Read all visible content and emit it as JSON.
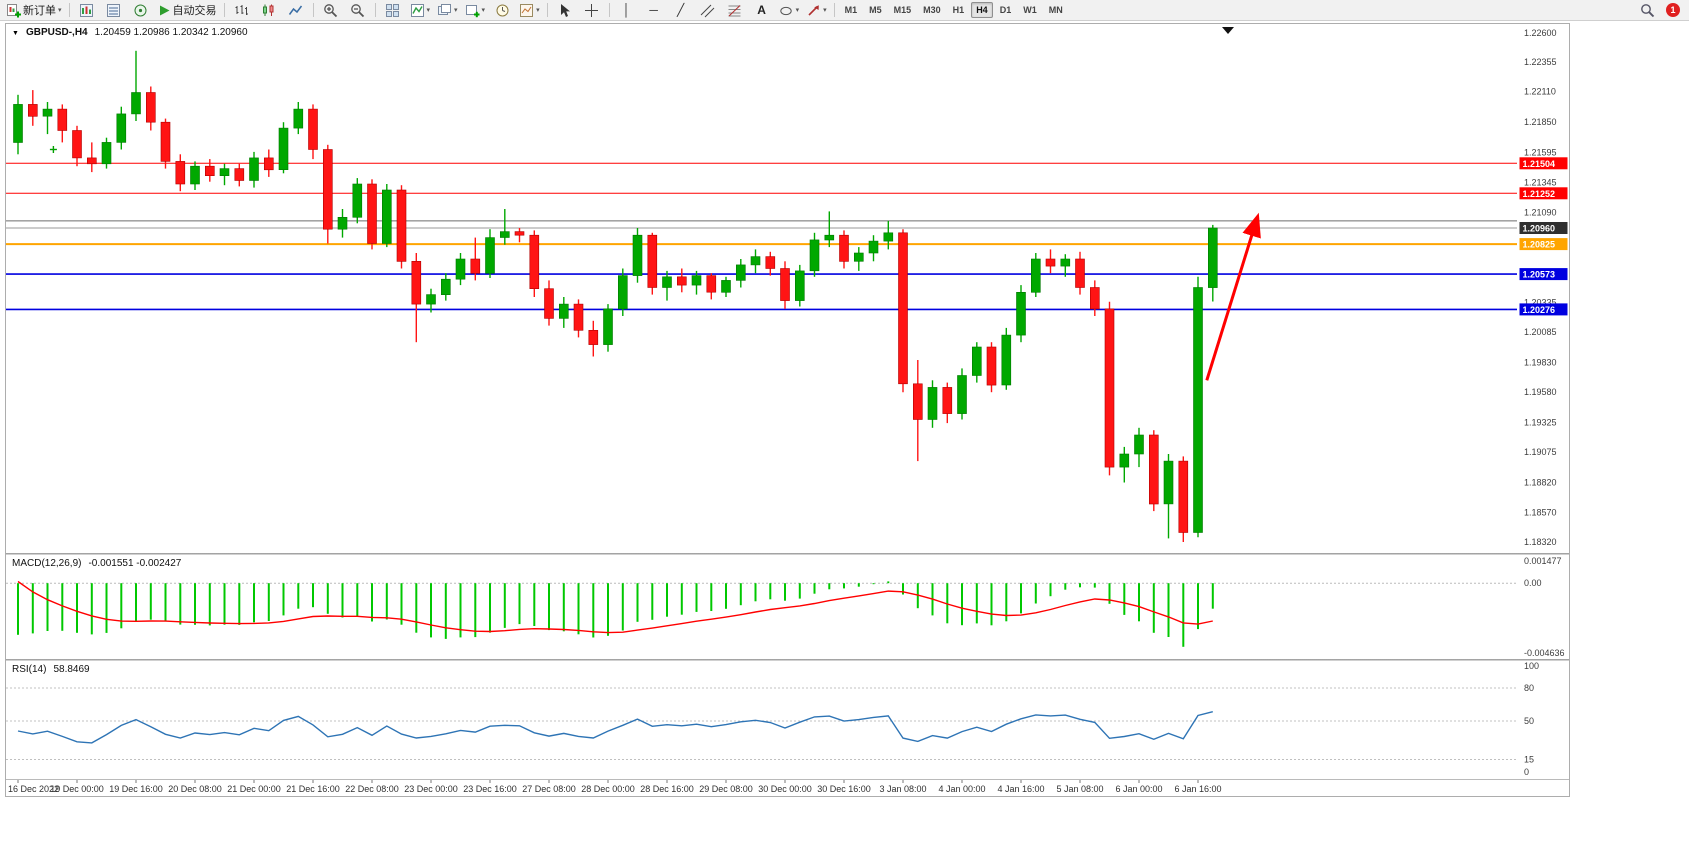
{
  "toolbar": {
    "new_order_label": "新订单",
    "auto_trading_label": "自动交易",
    "text_tool_label": "A",
    "timeframes": [
      "M1",
      "M5",
      "M15",
      "M30",
      "H1",
      "H4",
      "D1",
      "W1",
      "MN"
    ],
    "active_timeframe": "H4",
    "notification_count": "1",
    "caret": "▾"
  },
  "chart": {
    "collapse_icon": "▼",
    "symbol_label": "GBPUSD-,H4",
    "ohlc": "1.20459 1.20986 1.20342 1.20960",
    "macd_label": "MACD(12,26,9)",
    "macd_values": "-0.001551 -0.002427",
    "rsi_label": "RSI(14)",
    "rsi_value": "58.8469"
  },
  "chart_data": {
    "type": "candlestick",
    "symbol": "GBPUSD",
    "timeframe": "H4",
    "current_ohlc": {
      "open": 1.20459,
      "high": 1.20986,
      "low": 1.20342,
      "close": 1.2096
    },
    "price_axis": {
      "min": 1.1832,
      "max": 1.226,
      "labels": [
        "1.22600",
        "1.22355",
        "1.22110",
        "1.21850",
        "1.21595",
        "1.21345",
        "1.21090",
        "1.20335",
        "1.20085",
        "1.19830",
        "1.19580",
        "1.19325",
        "1.19075",
        "1.18820",
        "1.18570",
        "1.18320"
      ]
    },
    "candles": [
      [
        1.2168,
        1.2208,
        1.2158,
        1.22
      ],
      [
        1.22,
        1.2212,
        1.2182,
        1.219
      ],
      [
        1.219,
        1.2202,
        1.2175,
        1.2196
      ],
      [
        1.2196,
        1.22,
        1.2168,
        1.2178
      ],
      [
        1.2178,
        1.2182,
        1.2148,
        1.2155
      ],
      [
        1.2155,
        1.2168,
        1.2143,
        1.215
      ],
      [
        1.215,
        1.2172,
        1.2146,
        1.2168
      ],
      [
        1.2168,
        1.2198,
        1.2162,
        1.2192
      ],
      [
        1.2192,
        1.2245,
        1.2186,
        1.221
      ],
      [
        1.221,
        1.2215,
        1.2178,
        1.2185
      ],
      [
        1.2185,
        1.2188,
        1.2146,
        1.2152
      ],
      [
        1.2152,
        1.2158,
        1.2127,
        1.2133
      ],
      [
        1.2133,
        1.2152,
        1.2128,
        1.2148
      ],
      [
        1.2148,
        1.2154,
        1.2135,
        1.214
      ],
      [
        1.214,
        1.215,
        1.2132,
        1.2146
      ],
      [
        1.2146,
        1.215,
        1.2131,
        1.2136
      ],
      [
        1.2136,
        1.216,
        1.213,
        1.2155
      ],
      [
        1.2155,
        1.2162,
        1.2139,
        1.2145
      ],
      [
        1.2145,
        1.2185,
        1.2142,
        1.218
      ],
      [
        1.218,
        1.2202,
        1.2175,
        1.2196
      ],
      [
        1.2196,
        1.22,
        1.2154,
        1.2162
      ],
      [
        1.2162,
        1.2166,
        1.2083,
        1.2095
      ],
      [
        1.2095,
        1.2112,
        1.2088,
        1.2105
      ],
      [
        1.2105,
        1.2138,
        1.21,
        1.2133
      ],
      [
        1.2133,
        1.2137,
        1.2078,
        1.2083
      ],
      [
        1.2083,
        1.2133,
        1.208,
        1.2128
      ],
      [
        1.2128,
        1.2132,
        1.2062,
        1.2068
      ],
      [
        1.2068,
        1.2075,
        1.2,
        1.2032
      ],
      [
        1.2032,
        1.2045,
        1.2025,
        1.204
      ],
      [
        1.204,
        1.2058,
        1.2035,
        1.2053
      ],
      [
        1.2053,
        1.2075,
        1.2048,
        1.207
      ],
      [
        1.207,
        1.2088,
        1.2052,
        1.2058
      ],
      [
        1.2058,
        1.2095,
        1.2054,
        1.2088
      ],
      [
        1.2088,
        1.2112,
        1.2082,
        1.2093
      ],
      [
        1.2093,
        1.2096,
        1.2084,
        1.209
      ],
      [
        1.209,
        1.2094,
        1.2038,
        1.2045
      ],
      [
        1.2045,
        1.2052,
        1.2014,
        1.202
      ],
      [
        1.202,
        1.2038,
        1.2012,
        1.2032
      ],
      [
        1.2032,
        1.2036,
        1.2004,
        1.201
      ],
      [
        1.201,
        1.2018,
        1.1988,
        1.1998
      ],
      [
        1.1998,
        1.2032,
        1.1992,
        1.2028
      ],
      [
        1.2028,
        1.2062,
        1.2022,
        1.2056
      ],
      [
        1.2056,
        1.2096,
        1.205,
        1.209
      ],
      [
        1.209,
        1.2092,
        1.204,
        1.2046
      ],
      [
        1.2046,
        1.206,
        1.2035,
        1.2055
      ],
      [
        1.2055,
        1.2062,
        1.2042,
        1.2048
      ],
      [
        1.2048,
        1.206,
        1.204,
        1.2056
      ],
      [
        1.2056,
        1.2058,
        1.2036,
        1.2042
      ],
      [
        1.2042,
        1.2055,
        1.2038,
        1.2052
      ],
      [
        1.2052,
        1.207,
        1.2046,
        1.2065
      ],
      [
        1.2065,
        1.2078,
        1.2058,
        1.2072
      ],
      [
        1.2072,
        1.2076,
        1.2056,
        1.2062
      ],
      [
        1.2062,
        1.2068,
        1.2028,
        1.2035
      ],
      [
        1.2035,
        1.2065,
        1.203,
        1.206
      ],
      [
        1.206,
        1.2092,
        1.2055,
        1.2086
      ],
      [
        1.2086,
        1.211,
        1.208,
        1.209
      ],
      [
        1.209,
        1.2094,
        1.2062,
        1.2068
      ],
      [
        1.2068,
        1.208,
        1.206,
        1.2075
      ],
      [
        1.2075,
        1.209,
        1.2068,
        1.2085
      ],
      [
        1.2085,
        1.2102,
        1.2078,
        1.2092
      ],
      [
        1.2092,
        1.2095,
        1.1958,
        1.1965
      ],
      [
        1.1965,
        1.1985,
        1.19,
        1.1935
      ],
      [
        1.1935,
        1.1968,
        1.1928,
        1.1962
      ],
      [
        1.1962,
        1.1966,
        1.1932,
        1.194
      ],
      [
        1.194,
        1.1978,
        1.1935,
        1.1972
      ],
      [
        1.1972,
        1.2,
        1.1966,
        1.1996
      ],
      [
        1.1996,
        1.2,
        1.1958,
        1.1964
      ],
      [
        1.1964,
        1.2012,
        1.196,
        1.2006
      ],
      [
        1.2006,
        1.2048,
        1.2,
        1.2042
      ],
      [
        1.2042,
        1.2075,
        1.2038,
        1.207
      ],
      [
        1.207,
        1.2078,
        1.2058,
        1.2064
      ],
      [
        1.2064,
        1.2074,
        1.2055,
        1.207
      ],
      [
        1.207,
        1.2076,
        1.204,
        1.2046
      ],
      [
        1.2046,
        1.2052,
        1.2022,
        1.2028
      ],
      [
        1.2028,
        1.2034,
        1.1888,
        1.1895
      ],
      [
        1.1895,
        1.1912,
        1.1882,
        1.1906
      ],
      [
        1.1906,
        1.1928,
        1.1895,
        1.1922
      ],
      [
        1.1922,
        1.1926,
        1.1858,
        1.1864
      ],
      [
        1.1864,
        1.1906,
        1.1835,
        1.19
      ],
      [
        1.19,
        1.1904,
        1.1832,
        1.184
      ],
      [
        1.184,
        1.2055,
        1.1836,
        1.2046
      ],
      [
        1.20459,
        1.20986,
        1.20342,
        1.2096
      ]
    ],
    "time_ticks": [
      [
        0,
        "16 Dec 2022"
      ],
      [
        4,
        "19 Dec 00:00"
      ],
      [
        8,
        "19 Dec 16:00"
      ],
      [
        12,
        "20 Dec 08:00"
      ],
      [
        16,
        "21 Dec 00:00"
      ],
      [
        20,
        "21 Dec 16:00"
      ],
      [
        24,
        "22 Dec 08:00"
      ],
      [
        28,
        "23 Dec 00:00"
      ],
      [
        32,
        "23 Dec 16:00"
      ],
      [
        36,
        "27 Dec 08:00"
      ],
      [
        40,
        "28 Dec 00:00"
      ],
      [
        44,
        "28 Dec 16:00"
      ],
      [
        48,
        "29 Dec 08:00"
      ],
      [
        52,
        "30 Dec 00:00"
      ],
      [
        56,
        "30 Dec 16:00"
      ],
      [
        60,
        "3 Jan 08:00"
      ],
      [
        64,
        "4 Jan 00:00"
      ],
      [
        68,
        "4 Jan 16:00"
      ],
      [
        72,
        "5 Jan 08:00"
      ],
      [
        76,
        "6 Jan 00:00"
      ],
      [
        80,
        "6 Jan 16:00"
      ]
    ],
    "hlines": [
      {
        "value": 1.21504,
        "color": "#FF0000",
        "label": "1.21504",
        "lw": 1
      },
      {
        "value": 1.21252,
        "color": "#FF0000",
        "label": "1.21252",
        "lw": 1
      },
      {
        "value": 1.2102,
        "color": "#6e6e6e",
        "lw": 1
      },
      {
        "value": 1.20825,
        "color": "#FFA500",
        "label": "1.20825",
        "lw": 2
      },
      {
        "value": 1.20573,
        "color": "#0000E0",
        "label": "1.20573",
        "lw": 1.6
      },
      {
        "value": 1.20276,
        "color": "#0000E0",
        "label": "1.20276",
        "lw": 1.6
      }
    ],
    "bid": {
      "value": 1.2096,
      "label": "1.20960",
      "box_color": "#2f2f2f"
    },
    "arrow": {
      "from_i": 80.6,
      "from_price": 1.1968,
      "to_i": 84.0,
      "to_price": 1.2104,
      "color": "#FF0000",
      "width": 3
    },
    "cross_marker": {
      "i": 2.4,
      "price": 1.2162,
      "color": "#00A000"
    },
    "macd": {
      "fast": 12,
      "slow": 26,
      "signal_period": 9,
      "main": -0.001551,
      "signal": -0.002427,
      "axis_max": 0.001477,
      "axis_min": -0.004636,
      "axis_labels": [
        "0.001477",
        "0.00",
        "-0.004636"
      ]
    },
    "rsi": {
      "period": 14,
      "value": 58.8469,
      "levels": [
        80,
        50,
        15
      ],
      "axis_labels": [
        100,
        80,
        50,
        15,
        0
      ]
    },
    "colors": {
      "up": "#00A800",
      "up_edge": "#007800",
      "down": "#FF1414",
      "down_edge": "#B00000",
      "macd_hist": "#00C800",
      "macd_signal": "#FF0000",
      "rsi_line": "#2E74B5",
      "bid_line": "#9a9a9a"
    }
  }
}
